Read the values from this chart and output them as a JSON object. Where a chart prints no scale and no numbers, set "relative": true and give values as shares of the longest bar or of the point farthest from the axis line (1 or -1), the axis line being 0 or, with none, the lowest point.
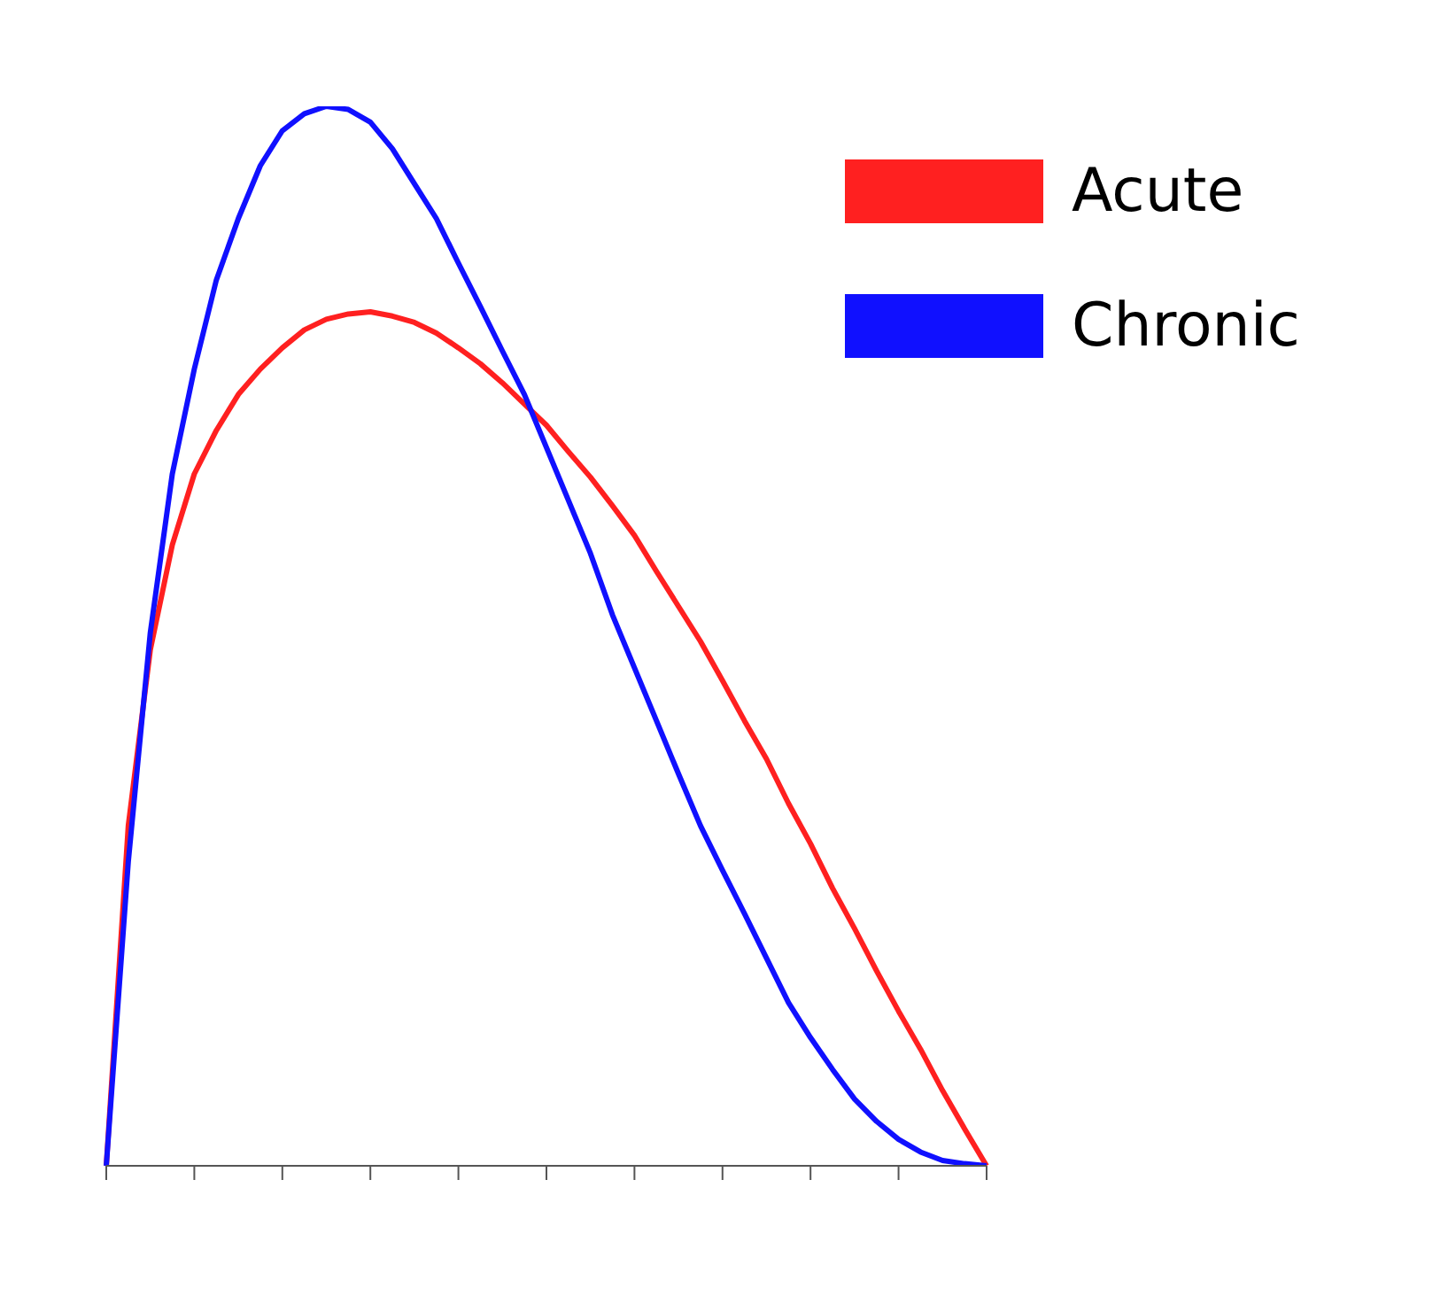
{
  "chart_data": {
    "type": "line",
    "relative": true,
    "legend": "top right",
    "marker": "none",
    "line_style": "solid",
    "grid": false,
    "categories": [
      null,
      null,
      null,
      null,
      null,
      null,
      null,
      null,
      null,
      null,
      null,
      null,
      null,
      null,
      null,
      null,
      null,
      null,
      null,
      null,
      null,
      null,
      null,
      null,
      null,
      null,
      null,
      null,
      null,
      null,
      null,
      null,
      null,
      null,
      null,
      null,
      null,
      null,
      null,
      null,
      null
    ],
    "series": [
      {
        "name": "Acute",
        "color": "#ff2020",
        "values": [
          0,
          0.321,
          0.487,
          0.586,
          0.653,
          0.694,
          0.728,
          0.752,
          0.772,
          0.789,
          0.799,
          0.804,
          0.806,
          0.802,
          0.796,
          0.786,
          0.772,
          0.757,
          0.739,
          0.719,
          0.699,
          0.674,
          0.65,
          0.623,
          0.595,
          0.561,
          0.528,
          0.495,
          0.458,
          0.42,
          0.384,
          0.342,
          0.304,
          0.262,
          0.224,
          0.184,
          0.146,
          0.11,
          0.071,
          0.035,
          0
        ]
      },
      {
        "name": "Chronic",
        "color": "#1010ff",
        "values": [
          0,
          0.287,
          0.503,
          0.653,
          0.752,
          0.836,
          0.894,
          0.944,
          0.977,
          0.993,
          1,
          0.997,
          0.985,
          0.96,
          0.927,
          0.894,
          0.852,
          0.811,
          0.769,
          0.728,
          0.678,
          0.628,
          0.578,
          0.52,
          0.47,
          0.42,
          0.37,
          0.321,
          0.279,
          0.238,
          0.196,
          0.154,
          0.121,
          0.091,
          0.063,
          0.042,
          0.025,
          0.013,
          0.005,
          0.002,
          0
        ]
      }
    ]
  }
}
